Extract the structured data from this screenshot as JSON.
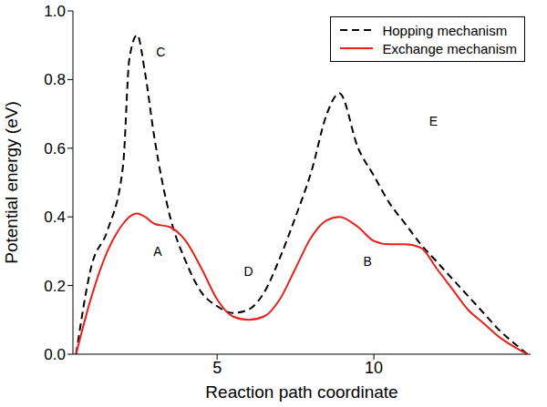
{
  "chart_data": {
    "type": "line",
    "x_label": "Reaction path coordinate",
    "y_label": "Potential energy (eV)",
    "x": [
      0.5,
      1.0,
      1.5,
      2.0,
      2.2,
      2.45,
      2.7,
      3.0,
      3.5,
      4.0,
      4.5,
      5.0,
      5.5,
      6.0,
      6.5,
      7.0,
      7.5,
      8.0,
      8.5,
      8.9,
      9.5,
      10.0,
      10.5,
      11.0,
      11.5,
      12.0,
      12.5,
      13.0,
      13.5,
      14.0,
      14.5,
      14.9
    ],
    "series": [
      {
        "name": "Hopping mechanism",
        "color": "#000000",
        "line_style": "dashed",
        "values": [
          0,
          0.26,
          0.36,
          0.55,
          0.86,
          0.93,
          0.82,
          0.63,
          0.4,
          0.27,
          0.18,
          0.14,
          0.12,
          0.13,
          0.18,
          0.28,
          0.4,
          0.53,
          0.7,
          0.76,
          0.6,
          0.52,
          0.44,
          0.38,
          0.32,
          0.27,
          0.22,
          0.17,
          0.12,
          0.07,
          0.03,
          0
        ]
      },
      {
        "name": "Exchange mechanism",
        "color": "#e8211b",
        "line_style": "solid",
        "values": [
          0,
          0.17,
          0.3,
          0.38,
          0.4,
          0.41,
          0.4,
          0.38,
          0.37,
          0.33,
          0.25,
          0.16,
          0.11,
          0.1,
          0.11,
          0.16,
          0.25,
          0.34,
          0.39,
          0.4,
          0.37,
          0.33,
          0.32,
          0.32,
          0.31,
          0.25,
          0.19,
          0.13,
          0.09,
          0.05,
          0.02,
          0
        ]
      }
    ],
    "xlim": [
      0.4,
      15
    ],
    "xticks": [
      5,
      10
    ],
    "ylim": [
      0,
      1
    ],
    "yticks": [
      {
        "value": 0,
        "label": "0.0"
      },
      0.2,
      0.4,
      0.6,
      0.8,
      {
        "value": 1,
        "label": "1.0"
      }
    ],
    "legend": "upper right",
    "annotations": [
      {
        "text": "A",
        "x": 3.1,
        "y": 0.3
      },
      {
        "text": "B",
        "x": 9.8,
        "y": 0.27
      },
      {
        "text": "C",
        "x": 3.2,
        "y": 0.88
      },
      {
        "text": "D",
        "x": 6.0,
        "y": 0.24
      },
      {
        "text": "E",
        "x": 11.9,
        "y": 0.68
      }
    ]
  }
}
